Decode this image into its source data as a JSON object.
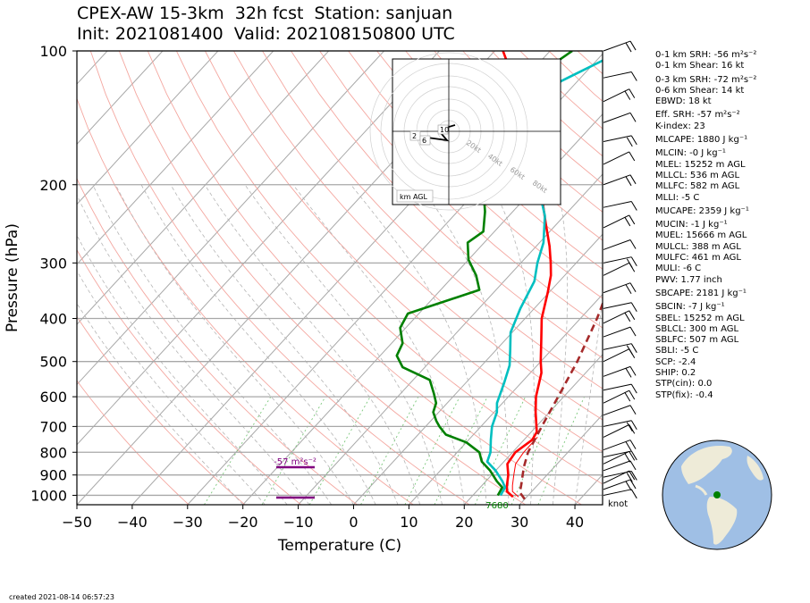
{
  "title": {
    "line1": "CPEX-AW 15-3km  32h fcst  Station: sanjuan",
    "line2": "Init: 2021081400  Valid: 202108150800 UTC"
  },
  "footer": "created 2021-08-14 06:57:23",
  "wind_unit": "knot",
  "stats": [
    {
      "text": "0-1 km SRH: -56 m²s⁻²"
    },
    {
      "text": "0-1 km Shear: 16 kt"
    },
    {
      "text": "0-3 km SRH: -72 m²s⁻²",
      "gap": true
    },
    {
      "text": "0-6 km Shear: 14 kt"
    },
    {
      "text": "EBWD: 18 kt"
    },
    {
      "text": "Eff. SRH: -57 m²s⁻²",
      "gap": true
    },
    {
      "text": "K-index: 23"
    },
    {
      "text": "MLCAPE: 1880 J kg⁻¹",
      "gap": true
    },
    {
      "text": "MLCIN: -0 J kg⁻¹",
      "gap": true
    },
    {
      "text": "MLEL: 15252 m AGL"
    },
    {
      "text": "MLLCL: 536 m AGL"
    },
    {
      "text": "MLLFC: 582 m AGL"
    },
    {
      "text": "MLLI: -5 C"
    },
    {
      "text": "MUCAPE: 2359 J kg⁻¹",
      "gap": true
    },
    {
      "text": "MUCIN: -1 J kg⁻¹",
      "gap": true
    },
    {
      "text": "MUEL: 15666 m AGL"
    },
    {
      "text": "MULCL: 388 m AGL"
    },
    {
      "text": "MULFC: 461 m AGL"
    },
    {
      "text": "MULI: -6 C"
    },
    {
      "text": "PWV: 1.77 inch"
    },
    {
      "text": "SBCAPE: 2181 J kg⁻¹",
      "gap": true
    },
    {
      "text": "SBCIN: -7 J kg⁻¹",
      "gap": true
    },
    {
      "text": "SBEL: 15252 m AGL"
    },
    {
      "text": "SBLCL: 300 m AGL"
    },
    {
      "text": "SBLFC: 507 m AGL"
    },
    {
      "text": "SBLI: -5 C"
    },
    {
      "text": "SCP: -2.4"
    },
    {
      "text": "SHIP: 0.2"
    },
    {
      "text": "STP(cin): 0.0"
    },
    {
      "text": "STP(fix): -0.4"
    }
  ],
  "chart_data": {
    "type": "line",
    "subtype": "skew-T log-p",
    "xlabel": "Temperature (C)",
    "ylabel": "Pressure (hPa)",
    "xlim": [
      -50,
      45
    ],
    "ylim": [
      1050,
      100
    ],
    "y_scale": "log",
    "x_ticks": [
      -50,
      -40,
      -30,
      -20,
      -10,
      0,
      10,
      20,
      30,
      40
    ],
    "y_ticks": [
      100,
      200,
      300,
      400,
      500,
      600,
      700,
      800,
      900,
      1000
    ],
    "grid": true,
    "series": [
      {
        "role": "temperature",
        "color": "#ff0000",
        "points": [
          [
            27.5,
            1008
          ],
          [
            25.5,
            980
          ],
          [
            24.5,
            950
          ],
          [
            23,
            900
          ],
          [
            21,
            850
          ],
          [
            20.5,
            800
          ],
          [
            21.5,
            750
          ],
          [
            21,
            720
          ],
          [
            17.5,
            650
          ],
          [
            15,
            600
          ],
          [
            12,
            530
          ],
          [
            10,
            500
          ],
          [
            6.7,
            450
          ],
          [
            3,
            400
          ],
          [
            -0.2,
            350
          ],
          [
            -2.5,
            320
          ],
          [
            -4.6,
            300
          ],
          [
            -7.6,
            275
          ],
          [
            -12,
            245
          ],
          [
            -16,
            220
          ],
          [
            -19.8,
            200
          ],
          [
            -25.5,
            172
          ],
          [
            -31,
            150
          ],
          [
            -37,
            130
          ],
          [
            -43,
            113
          ],
          [
            -48.5,
            100
          ]
        ]
      },
      {
        "role": "virtual temperature",
        "color": "#ff0000",
        "points": [
          [
            28.5,
            1008
          ],
          [
            26.5,
            980
          ],
          [
            25.5,
            950
          ],
          [
            24,
            900
          ],
          [
            22.5,
            850
          ],
          [
            22,
            800
          ],
          [
            22,
            740
          ]
        ]
      },
      {
        "role": "wet-bulb temperature",
        "color": "#00bfc0",
        "points": [
          [
            25,
            1000
          ],
          [
            24.5,
            960
          ],
          [
            23,
            930
          ],
          [
            20,
            880
          ],
          [
            17,
            840
          ],
          [
            16,
            800
          ],
          [
            14,
            750
          ],
          [
            12,
            700
          ],
          [
            10.5,
            650
          ],
          [
            9,
            620
          ],
          [
            7,
            560
          ],
          [
            5,
            510
          ],
          [
            2.5,
            470
          ],
          [
            -0.3,
            430
          ],
          [
            -2.5,
            380
          ],
          [
            -4.5,
            330
          ],
          [
            -7,
            300
          ],
          [
            -9.3,
            270
          ],
          [
            -13.5,
            235
          ],
          [
            -18,
            210
          ],
          [
            -21,
            195
          ],
          [
            -27,
            165
          ],
          [
            -32,
            140
          ],
          [
            -33,
            127
          ],
          [
            -33,
            117
          ],
          [
            -27,
            100
          ]
        ]
      },
      {
        "role": "dewpoint",
        "color": "#008000",
        "points": [
          [
            24.5,
            1000
          ],
          [
            24,
            960
          ],
          [
            22,
            930
          ],
          [
            19,
            880
          ],
          [
            16,
            840
          ],
          [
            14,
            800
          ],
          [
            10,
            760
          ],
          [
            5,
            730
          ],
          [
            2.5,
            700
          ],
          [
            1,
            680
          ],
          [
            -1,
            650
          ],
          [
            -2,
            620
          ],
          [
            -4,
            590
          ],
          [
            -7,
            550
          ],
          [
            -14,
            515
          ],
          [
            -17,
            485
          ],
          [
            -18,
            455
          ],
          [
            -21,
            420
          ],
          [
            -22,
            390
          ],
          [
            -13,
            345
          ],
          [
            -16,
            320
          ],
          [
            -20,
            295
          ],
          [
            -23,
            270
          ],
          [
            -22,
            255
          ],
          [
            -25,
            230
          ],
          [
            -29,
            205
          ],
          [
            -30,
            190
          ],
          [
            -31,
            180
          ],
          [
            -38,
            150
          ],
          [
            -39,
            132
          ],
          [
            -39,
            118
          ],
          [
            -36,
            100
          ]
        ]
      },
      {
        "role": "parcel path",
        "color": "#a52a2a",
        "style": "dashed",
        "points": [
          [
            30,
            1020
          ],
          [
            28,
            985
          ],
          [
            26.8,
            940
          ],
          [
            25.6,
            900
          ],
          [
            24.4,
            860
          ],
          [
            22.8,
            800
          ],
          [
            21,
            700
          ],
          [
            19,
            600
          ],
          [
            16.6,
            500
          ],
          [
            13,
            400
          ],
          [
            10.5,
            350
          ],
          [
            8.2,
            300
          ],
          [
            4.5,
            240
          ],
          [
            0.6,
            190
          ],
          [
            -4,
            150
          ],
          [
            -9,
            120
          ],
          [
            -13.5,
            100
          ]
        ]
      }
    ],
    "annotations": [
      {
        "text": "-57 m²s⁻²",
        "color": "#800080"
      },
      {
        "text": "7680",
        "color": "#008000"
      }
    ],
    "hodograph": {
      "range_labels": [
        "20kt",
        "40kt",
        "60kt",
        "80kt"
      ],
      "height_labels": [
        "2",
        "6",
        "10"
      ],
      "caption": "km AGL"
    }
  }
}
